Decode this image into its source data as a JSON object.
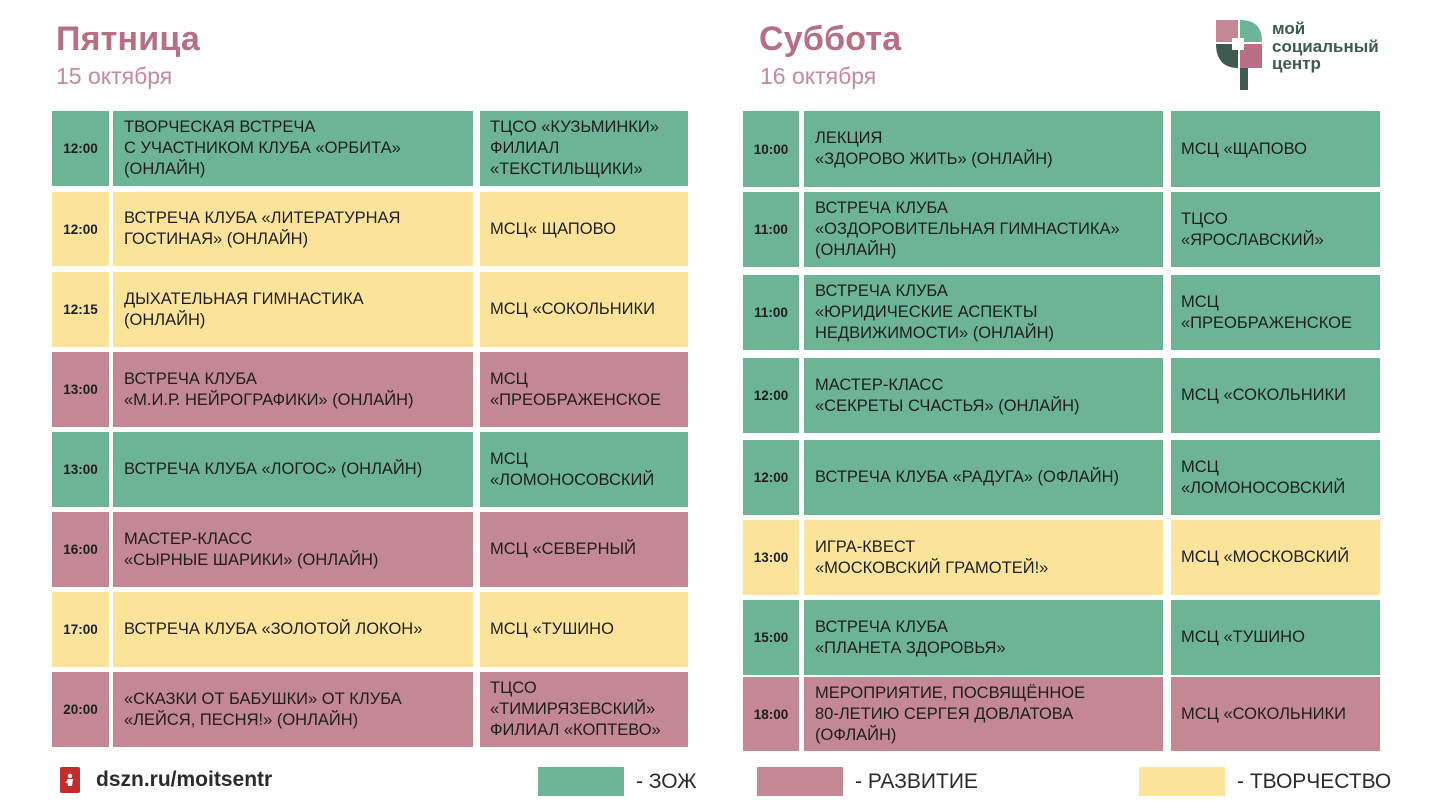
{
  "friday": {
    "title": "Пятница",
    "date": "15 октября",
    "events": [
      {
        "time": "12:00",
        "event": "ТВОРЧЕСКАЯ ВСТРЕЧА\nС УЧАСТНИКОМ КЛУБА «ОРБИТА»\n(ОНЛАЙН)",
        "venue": "ТЦСО «КУЗЬМИНКИ»\nФИЛИАЛ\n«ТЕКСТИЛЬЩИКИ»",
        "category": "zoj"
      },
      {
        "time": "12:00",
        "event": "ВСТРЕЧА КЛУБА «ЛИТЕРАТУРНАЯ\nГОСТИНАЯ» (ОНЛАЙН)",
        "venue": "МСЦ« ЩАПОВО",
        "category": "tvorchestvo"
      },
      {
        "time": "12:15",
        "event": "ДЫХАТЕЛЬНАЯ ГИМНАСТИКА\n(ОНЛАЙН)",
        "venue": "МСЦ «СОКОЛЬНИКИ",
        "category": "tvorchestvo"
      },
      {
        "time": "13:00",
        "event": "ВСТРЕЧА КЛУБА\n«М.И.Р. НЕЙРОГРАФИКИ» (ОНЛАЙН)",
        "venue": "МСЦ\n«ПРЕОБРАЖЕНСКОЕ",
        "category": "razvitie"
      },
      {
        "time": "13:00",
        "event": "ВСТРЕЧА КЛУБА «ЛОГОС» (ОНЛАЙН)",
        "venue": "МСЦ\n«ЛОМОНОСОВСКИЙ",
        "category": "zoj"
      },
      {
        "time": "16:00",
        "event": "МАСТЕР-КЛАСС\n«СЫРНЫЕ ШАРИКИ» (ОНЛАЙН)",
        "venue": "МСЦ «СЕВЕРНЫЙ",
        "category": "razvitie"
      },
      {
        "time": "17:00",
        "event": "ВСТРЕЧА КЛУБА «ЗОЛОТОЙ ЛОКОН»",
        "venue": "МСЦ «ТУШИНО",
        "category": "tvorchestvo"
      },
      {
        "time": "20:00",
        "event": "«СКАЗКИ ОТ БАБУШКИ» ОТ КЛУБА\n«ЛЕЙСЯ, ПЕСНЯ!» (ОНЛАЙН)",
        "venue": "ТЦСО\n«ТИМИРЯЗЕВСКИЙ»\nФИЛИАЛ «КОПТЕВО»",
        "category": "razvitie"
      }
    ]
  },
  "saturday": {
    "title": "Суббота",
    "date": "16 октября",
    "events": [
      {
        "time": "10:00",
        "event": "ЛЕКЦИЯ\n«ЗДОРОВО ЖИТЬ» (ОНЛАЙН)",
        "venue": "МСЦ «ЩАПОВО",
        "category": "zoj"
      },
      {
        "time": "11:00",
        "event": "ВСТРЕЧА КЛУБА\n«ОЗДОРОВИТЕЛЬНАЯ ГИМНАСТИКА»\n(ОНЛАЙН)",
        "venue": "ТЦСО\n«ЯРОСЛАВСКИЙ»",
        "category": "zoj"
      },
      {
        "time": "11:00",
        "event": "ВСТРЕЧА КЛУБА\n«ЮРИДИЧЕСКИЕ АСПЕКТЫ\nНЕДВИЖИМОСТИ» (ОНЛАЙН)",
        "venue": "МСЦ\n«ПРЕОБРАЖЕНСКОЕ",
        "category": "zoj"
      },
      {
        "time": "12:00",
        "event": "МАСТЕР-КЛАСС\n«СЕКРЕТЫ СЧАСТЬЯ» (ОНЛАЙН)",
        "venue": "МСЦ «СОКОЛЬНИКИ",
        "category": "zoj"
      },
      {
        "time": "12:00",
        "event": "ВСТРЕЧА КЛУБА «РАДУГА» (ОФЛАЙН)",
        "venue": "МСЦ\n«ЛОМОНОСОВСКИЙ",
        "category": "zoj"
      },
      {
        "time": "13:00",
        "event": "ИГРА-КВЕСТ\n«МОСКОВСКИЙ ГРАМОТЕЙ!»",
        "venue": "МСЦ «МОСКОВСКИЙ",
        "category": "tvorchestvo"
      },
      {
        "time": "15:00",
        "event": "ВСТРЕЧА КЛУБА\n«ПЛАНЕТА ЗДОРОВЬЯ»",
        "venue": "МСЦ «ТУШИНО",
        "category": "zoj"
      },
      {
        "time": "18:00",
        "event": "МЕРОПРИЯТИЕ, ПОСВЯЩЁННОЕ\n80-ЛЕТИЮ СЕРГЕЯ ДОВЛАТОВА\n(ОФЛАЙН)",
        "venue": "МСЦ «СОКОЛЬНИКИ",
        "category": "razvitie"
      }
    ]
  },
  "logo": {
    "text": "мой\nсоциальный\nцентр"
  },
  "footer": {
    "site": "dszn.ru/moitsentr",
    "legend": [
      {
        "label": "- ЗОЖ",
        "category": "zoj"
      },
      {
        "label": "- РАЗВИТИЕ",
        "category": "razvitie"
      },
      {
        "label": "- ТВОРЧЕСТВО",
        "category": "tvorchestvo"
      }
    ]
  },
  "colors": {
    "zoj": "#6db497",
    "razvitie": "#c38893",
    "tvorchestvo": "#fbe49a",
    "title": "#b86e83",
    "date": "#c7899b"
  }
}
